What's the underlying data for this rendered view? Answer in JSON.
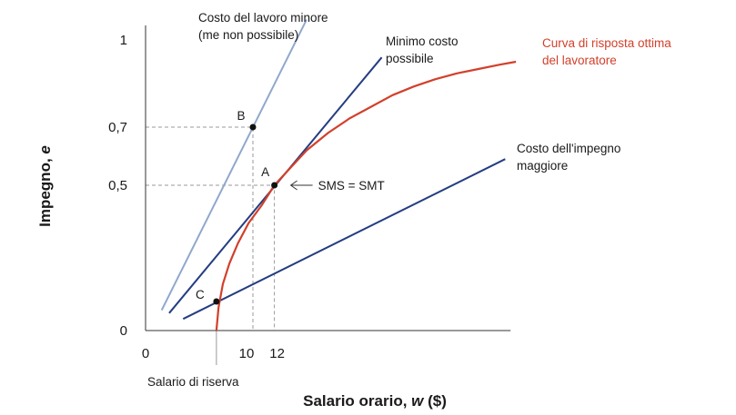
{
  "chart_data": {
    "type": "line",
    "xlabel_main": "Salario orario, ",
    "xlabel_var": "w",
    "xlabel_unit": " ($)",
    "ylabel_main": "Impegno, ",
    "ylabel_var": "e",
    "x_ticks": [
      "0",
      "10",
      "12"
    ],
    "y_ticks": [
      "0",
      "0,5",
      "0,7",
      "1"
    ],
    "xlim": [
      0,
      34
    ],
    "ylim": [
      0,
      1
    ],
    "reservation_wage": 6.6,
    "reservation_label": "Salario di riserva",
    "colors": {
      "curve": "#d2402b",
      "dark_line": "#243d82",
      "light_line": "#8fa8cd",
      "guide": "#9a9a9a",
      "point": "#111111"
    },
    "curve": {
      "label": [
        "Curva di risposta ottima",
        "del lavoratore"
      ],
      "points": [
        [
          6.6,
          0
        ],
        [
          6.8,
          0.08
        ],
        [
          7.2,
          0.16
        ],
        [
          7.8,
          0.23
        ],
        [
          8.6,
          0.3
        ],
        [
          9.6,
          0.37
        ],
        [
          10.8,
          0.43
        ],
        [
          12,
          0.5
        ],
        [
          13.5,
          0.56
        ],
        [
          15,
          0.62
        ],
        [
          17,
          0.68
        ],
        [
          19,
          0.73
        ],
        [
          21,
          0.77
        ],
        [
          23,
          0.81
        ],
        [
          25,
          0.84
        ],
        [
          27,
          0.865
        ],
        [
          29,
          0.885
        ],
        [
          31,
          0.9
        ],
        [
          33,
          0.915
        ],
        [
          34.5,
          0.925
        ]
      ]
    },
    "lines": [
      {
        "key": "light",
        "label": [
          "Costo del lavoro minore",
          "(me non possibile)"
        ],
        "x": [
          1.5,
          15
        ],
        "y": [
          0.07,
          1.07
        ]
      },
      {
        "key": "min",
        "label": [
          "Minimo costo",
          "possibile"
        ],
        "x": [
          2.2,
          22
        ],
        "y": [
          0.06,
          0.94
        ]
      },
      {
        "key": "high",
        "label": [
          "Costo dell'impegno",
          "maggiore"
        ],
        "x": [
          3.5,
          33.5
        ],
        "y": [
          0.04,
          0.59
        ]
      }
    ],
    "points": [
      {
        "label": "B",
        "x": 10,
        "y": 0.7
      },
      {
        "label": "A",
        "x": 12,
        "y": 0.5
      },
      {
        "label": "C",
        "x": 6.6,
        "y": 0.1
      }
    ],
    "annotation": "SMS = SMT"
  }
}
